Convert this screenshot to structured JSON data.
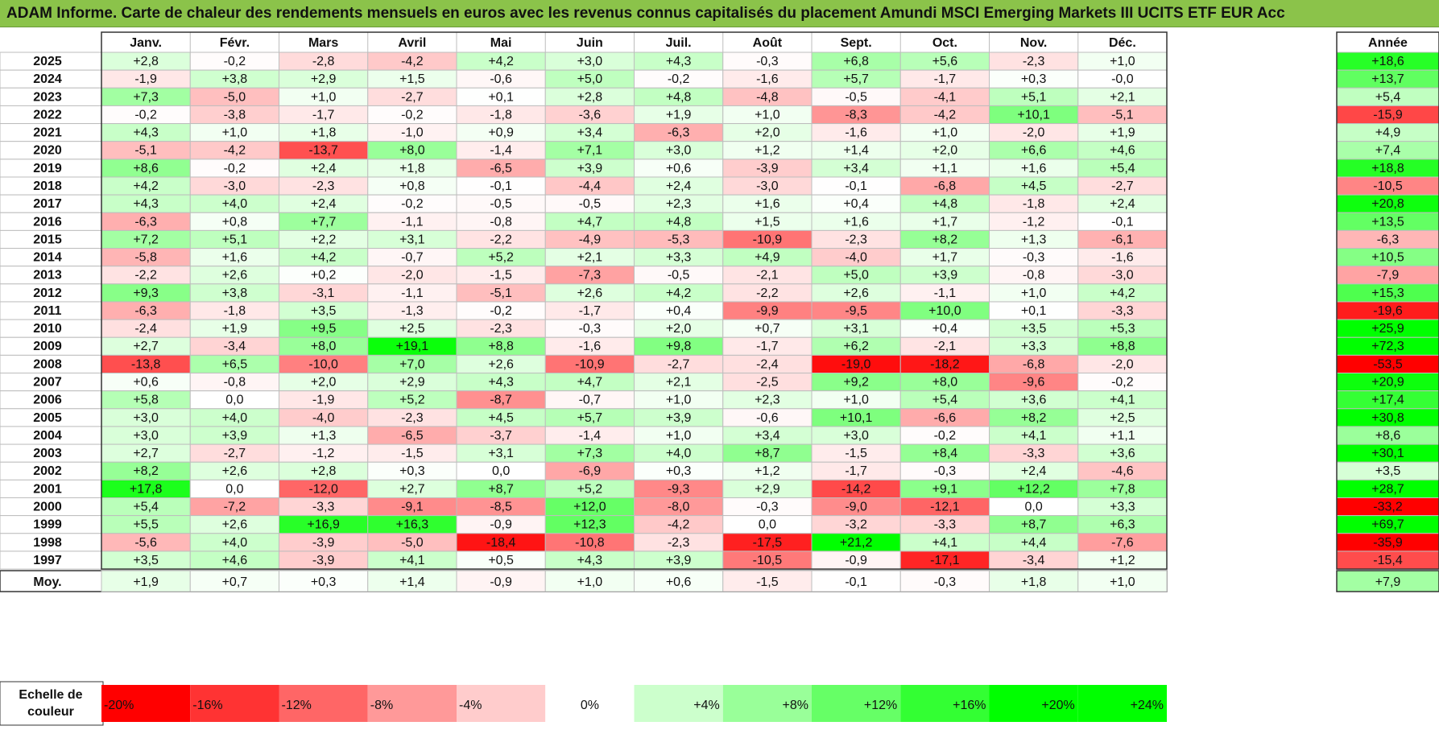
{
  "title": "ADAM Informe. Carte de chaleur des rendements mensuels en euros avec les revenus connus capitalisés du placement Amundi MSCI Emerging Markets III UCITS ETF EUR Acc",
  "chart_data": {
    "type": "heatmap",
    "months": [
      "Janv.",
      "Févr.",
      "Mars",
      "Avril",
      "Mai",
      "Juin",
      "Juil.",
      "Août",
      "Sept.",
      "Oct.",
      "Nov.",
      "Déc."
    ],
    "year_col_label": "Année",
    "avg_label": "Moy.",
    "scale_label": [
      "Echelle de",
      "couleur"
    ],
    "colors": {
      "neg": "#ff0000",
      "zero": "#ffffff",
      "pos": "#00ff00"
    },
    "scale_stops": [
      {
        "label": "-20%",
        "value": -20,
        "align": "left"
      },
      {
        "label": "-16%",
        "value": -16,
        "align": "left"
      },
      {
        "label": "-12%",
        "value": -12,
        "align": "left"
      },
      {
        "label": "-8%",
        "value": -8,
        "align": "left"
      },
      {
        "label": "-4%",
        "value": -4,
        "align": "left"
      },
      {
        "label": "0%",
        "value": 0,
        "align": "center"
      },
      {
        "label": "+4%",
        "value": 4,
        "align": "right"
      },
      {
        "label": "+8%",
        "value": 8,
        "align": "right"
      },
      {
        "label": "+12%",
        "value": 12,
        "align": "right"
      },
      {
        "label": "+16%",
        "value": 16,
        "align": "right"
      },
      {
        "label": "+20%",
        "value": 20,
        "align": "right"
      },
      {
        "label": "+24%",
        "value": 24,
        "align": "right"
      }
    ],
    "rows": [
      {
        "year": "2025",
        "values": [
          "+2,8",
          "-0,2",
          "-2,8",
          "-4,2",
          "+4,2",
          "+3,0",
          "+4,3",
          "-0,3",
          "+6,8",
          "+5,6",
          "-2,3",
          "+1,0"
        ],
        "annual": "+18,6"
      },
      {
        "year": "2024",
        "values": [
          "-1,9",
          "+3,8",
          "+2,9",
          "+1,5",
          "-0,6",
          "+5,0",
          "-0,2",
          "-1,6",
          "+5,7",
          "-1,7",
          "+0,3",
          "-0,0"
        ],
        "annual": "+13,7"
      },
      {
        "year": "2023",
        "values": [
          "+7,3",
          "-5,0",
          "+1,0",
          "-2,7",
          "+0,1",
          "+2,8",
          "+4,8",
          "-4,8",
          "-0,5",
          "-4,1",
          "+5,1",
          "+2,1"
        ],
        "annual": "+5,4"
      },
      {
        "year": "2022",
        "values": [
          "-0,2",
          "-3,8",
          "-1,7",
          "-0,2",
          "-1,8",
          "-3,6",
          "+1,9",
          "+1,0",
          "-8,3",
          "-4,2",
          "+10,1",
          "-5,1"
        ],
        "annual": "-15,9"
      },
      {
        "year": "2021",
        "values": [
          "+4,3",
          "+1,0",
          "+1,8",
          "-1,0",
          "+0,9",
          "+3,4",
          "-6,3",
          "+2,0",
          "-1,6",
          "+1,0",
          "-2,0",
          "+1,9"
        ],
        "annual": "+4,9"
      },
      {
        "year": "2020",
        "values": [
          "-5,1",
          "-4,2",
          "-13,7",
          "+8,0",
          "-1,4",
          "+7,1",
          "+3,0",
          "+1,2",
          "+1,4",
          "+2,0",
          "+6,6",
          "+4,6"
        ],
        "annual": "+7,4"
      },
      {
        "year": "2019",
        "values": [
          "+8,6",
          "-0,2",
          "+2,4",
          "+1,8",
          "-6,5",
          "+3,9",
          "+0,6",
          "-3,9",
          "+3,4",
          "+1,1",
          "+1,6",
          "+5,4"
        ],
        "annual": "+18,8"
      },
      {
        "year": "2018",
        "values": [
          "+4,2",
          "-3,0",
          "-2,3",
          "+0,8",
          "-0,1",
          "-4,4",
          "+2,4",
          "-3,0",
          "-0,1",
          "-6,8",
          "+4,5",
          "-2,7"
        ],
        "annual": "-10,5"
      },
      {
        "year": "2017",
        "values": [
          "+4,3",
          "+4,0",
          "+2,4",
          "-0,2",
          "-0,5",
          "-0,5",
          "+2,3",
          "+1,6",
          "+0,4",
          "+4,8",
          "-1,8",
          "+2,4"
        ],
        "annual": "+20,8"
      },
      {
        "year": "2016",
        "values": [
          "-6,3",
          "+0,8",
          "+7,7",
          "-1,1",
          "-0,8",
          "+4,7",
          "+4,8",
          "+1,5",
          "+1,6",
          "+1,7",
          "-1,2",
          "-0,1"
        ],
        "annual": "+13,5"
      },
      {
        "year": "2015",
        "values": [
          "+7,2",
          "+5,1",
          "+2,2",
          "+3,1",
          "-2,2",
          "-4,9",
          "-5,3",
          "-10,9",
          "-2,3",
          "+8,2",
          "+1,3",
          "-6,1"
        ],
        "annual": "-6,3"
      },
      {
        "year": "2014",
        "values": [
          "-5,8",
          "+1,6",
          "+4,2",
          "-0,7",
          "+5,2",
          "+2,1",
          "+3,3",
          "+4,9",
          "-4,0",
          "+1,7",
          "-0,3",
          "-1,6"
        ],
        "annual": "+10,5"
      },
      {
        "year": "2013",
        "values": [
          "-2,2",
          "+2,6",
          "+0,2",
          "-2,0",
          "-1,5",
          "-7,3",
          "-0,5",
          "-2,1",
          "+5,0",
          "+3,9",
          "-0,8",
          "-3,0"
        ],
        "annual": "-7,9"
      },
      {
        "year": "2012",
        "values": [
          "+9,3",
          "+3,8",
          "-3,1",
          "-1,1",
          "-5,1",
          "+2,6",
          "+4,2",
          "-2,2",
          "+2,6",
          "-1,1",
          "+1,0",
          "+4,2"
        ],
        "annual": "+15,3"
      },
      {
        "year": "2011",
        "values": [
          "-6,3",
          "-1,8",
          "+3,5",
          "-1,3",
          "-0,2",
          "-1,7",
          "+0,4",
          "-9,9",
          "-9,5",
          "+10,0",
          "+0,1",
          "-3,3"
        ],
        "annual": "-19,6"
      },
      {
        "year": "2010",
        "values": [
          "-2,4",
          "+1,9",
          "+9,5",
          "+2,5",
          "-2,3",
          "-0,3",
          "+2,0",
          "+0,7",
          "+3,1",
          "+0,4",
          "+3,5",
          "+5,3"
        ],
        "annual": "+25,9"
      },
      {
        "year": "2009",
        "values": [
          "+2,7",
          "-3,4",
          "+8,0",
          "+19,1",
          "+8,8",
          "-1,6",
          "+9,8",
          "-1,7",
          "+6,2",
          "-2,1",
          "+3,3",
          "+8,8"
        ],
        "annual": "+72,3"
      },
      {
        "year": "2008",
        "values": [
          "-13,8",
          "+6,5",
          "-10,0",
          "+7,0",
          "+2,6",
          "-10,9",
          "-2,7",
          "-2,4",
          "-19,0",
          "-18,2",
          "-6,8",
          "-2,0"
        ],
        "annual": "-53,5"
      },
      {
        "year": "2007",
        "values": [
          "+0,6",
          "-0,8",
          "+2,0",
          "+2,9",
          "+4,3",
          "+4,7",
          "+2,1",
          "-2,5",
          "+9,2",
          "+8,0",
          "-9,6",
          "-0,2"
        ],
        "annual": "+20,9"
      },
      {
        "year": "2006",
        "values": [
          "+5,8",
          "0,0",
          "-1,9",
          "+5,2",
          "-8,7",
          "-0,7",
          "+1,0",
          "+2,3",
          "+1,0",
          "+5,4",
          "+3,6",
          "+4,1"
        ],
        "annual": "+17,4"
      },
      {
        "year": "2005",
        "values": [
          "+3,0",
          "+4,0",
          "-4,0",
          "-2,3",
          "+4,5",
          "+5,7",
          "+3,9",
          "-0,6",
          "+10,1",
          "-6,6",
          "+8,2",
          "+2,5"
        ],
        "annual": "+30,8"
      },
      {
        "year": "2004",
        "values": [
          "+3,0",
          "+3,9",
          "+1,3",
          "-6,5",
          "-3,7",
          "-1,4",
          "+1,0",
          "+3,4",
          "+3,0",
          "-0,2",
          "+4,1",
          "+1,1"
        ],
        "annual": "+8,6"
      },
      {
        "year": "2003",
        "values": [
          "+2,7",
          "-2,7",
          "-1,2",
          "-1,5",
          "+3,1",
          "+7,3",
          "+4,0",
          "+8,7",
          "-1,5",
          "+8,4",
          "-3,3",
          "+3,6"
        ],
        "annual": "+30,1"
      },
      {
        "year": "2002",
        "values": [
          "+8,2",
          "+2,6",
          "+2,8",
          "+0,3",
          "0,0",
          "-6,9",
          "+0,3",
          "+1,2",
          "-1,7",
          "-0,3",
          "+2,4",
          "-4,6"
        ],
        "annual": "+3,5"
      },
      {
        "year": "2001",
        "values": [
          "+17,8",
          "0,0",
          "-12,0",
          "+2,7",
          "+8,7",
          "+5,2",
          "-9,3",
          "+2,9",
          "-14,2",
          "+9,1",
          "+12,2",
          "+7,8"
        ],
        "annual": "+28,7"
      },
      {
        "year": "2000",
        "values": [
          "+5,4",
          "-7,2",
          "-3,3",
          "-9,1",
          "-8,5",
          "+12,0",
          "-8,0",
          "-0,3",
          "-9,0",
          "-12,1",
          "0,0",
          "+3,3"
        ],
        "annual": "-33,2"
      },
      {
        "year": "1999",
        "values": [
          "+5,5",
          "+2,6",
          "+16,9",
          "+16,3",
          "-0,9",
          "+12,3",
          "-4,2",
          "0,0",
          "-3,2",
          "-3,3",
          "+8,7",
          "+6,3"
        ],
        "annual": "+69,7"
      },
      {
        "year": "1998",
        "values": [
          "-5,6",
          "+4,0",
          "-3,9",
          "-5,0",
          "-18,4",
          "-10,8",
          "-2,3",
          "-17,5",
          "+21,2",
          "+4,1",
          "+4,4",
          "-7,6"
        ],
        "annual": "-35,9"
      },
      {
        "year": "1997",
        "values": [
          "+3,5",
          "+4,6",
          "-3,9",
          "+4,1",
          "+0,5",
          "+4,3",
          "+3,9",
          "-10,5",
          "-0,9",
          "-17,1",
          "-3,4",
          "+1,2"
        ],
        "annual": "-15,4"
      }
    ],
    "averages": [
      "+1,9",
      "+0,7",
      "+0,3",
      "+1,4",
      "-0,9",
      "+1,0",
      "+0,6",
      "-1,5",
      "-0,1",
      "-0,3",
      "+1,8",
      "+1,0"
    ],
    "average_annual": "+7,9"
  }
}
